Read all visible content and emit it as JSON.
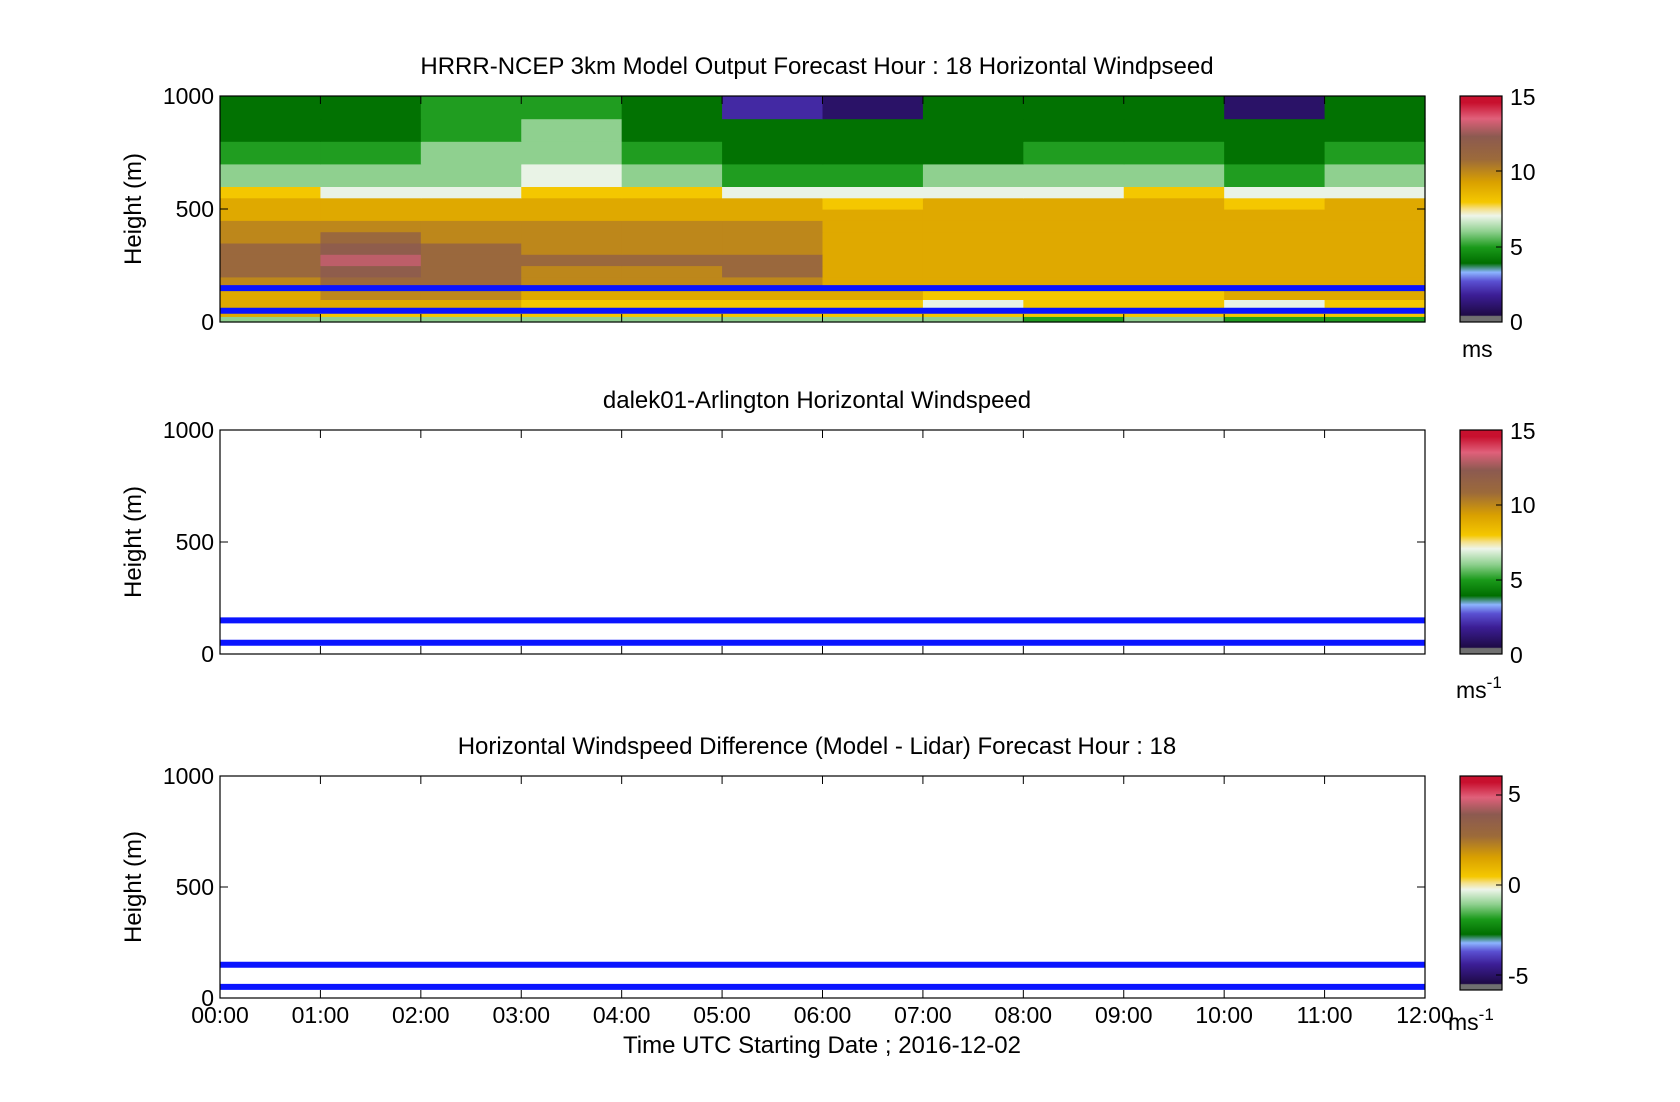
{
  "figure": {
    "xlabel": "Time UTC  Starting Date ; 2016-12-02",
    "x_ticks": [
      "00:00",
      "01:00",
      "02:00",
      "03:00",
      "04:00",
      "05:00",
      "06:00",
      "07:00",
      "08:00",
      "09:00",
      "10:00",
      "11:00",
      "12:00"
    ]
  },
  "chart_data": [
    {
      "type": "heatmap",
      "title": "HRRR-NCEP 3km Model Output   Forecast Hour : 18 Horizontal Windpseed",
      "ylabel": "Height (m)",
      "ylim": [
        0,
        1000
      ],
      "y_ticks": [
        "0",
        "500",
        "1000"
      ],
      "x_hours": [
        0,
        1,
        2,
        3,
        4,
        5,
        6,
        7,
        8,
        9,
        10,
        11
      ],
      "y_levels_m": [
        0,
        25,
        50,
        100,
        150,
        200,
        250,
        300,
        350,
        400,
        450,
        500,
        550,
        600,
        700,
        800,
        900,
        1000
      ],
      "values_ms": [
        [
          6,
          6,
          6,
          6,
          6,
          6,
          6,
          6,
          5,
          6,
          5,
          5
        ],
        [
          9,
          8,
          8,
          8,
          8,
          8,
          8,
          8,
          8,
          8,
          8,
          8
        ],
        [
          9,
          9,
          9,
          8,
          8,
          8,
          8,
          7,
          8,
          8,
          7,
          8
        ],
        [
          9,
          10,
          10,
          9,
          9,
          9,
          9,
          8,
          8,
          8,
          9,
          9
        ],
        [
          10,
          11,
          11,
          10,
          10,
          10,
          9,
          9,
          9,
          9,
          9,
          9
        ],
        [
          11,
          12,
          11,
          10,
          10,
          11,
          9,
          9,
          9,
          9,
          9,
          9
        ],
        [
          11,
          13,
          11,
          11,
          11,
          11,
          9,
          9,
          9,
          9,
          9,
          9
        ],
        [
          11,
          12,
          11,
          10,
          10,
          10,
          9,
          9,
          9,
          9,
          9,
          9
        ],
        [
          10,
          11,
          10,
          10,
          10,
          10,
          9,
          9,
          9,
          9,
          9,
          9
        ],
        [
          10,
          10,
          10,
          10,
          10,
          10,
          9,
          9,
          9,
          9,
          9,
          9
        ],
        [
          9,
          9,
          9,
          9,
          9,
          9,
          9,
          9,
          9,
          9,
          9,
          9
        ],
        [
          9,
          9,
          9,
          9,
          9,
          9,
          8,
          9,
          9,
          9,
          8,
          9
        ],
        [
          8,
          7,
          7,
          8,
          8,
          7,
          7,
          7,
          7,
          8,
          7,
          7
        ],
        [
          6,
          6,
          6,
          7,
          6,
          5,
          5,
          6,
          6,
          6,
          5,
          6
        ],
        [
          5,
          5,
          6,
          6,
          5,
          4,
          4,
          4,
          5,
          5,
          4,
          5
        ],
        [
          4,
          4,
          5,
          6,
          4,
          4,
          4,
          4,
          4,
          4,
          4,
          4
        ],
        [
          4,
          4,
          5,
          5,
          4,
          2,
          1,
          4,
          4,
          4,
          1,
          4
        ]
      ],
      "overlay_lines_m": [
        150,
        50
      ],
      "colorbar": {
        "ticks": [
          "0",
          "5",
          "10",
          "15"
        ],
        "range": [
          0,
          15
        ],
        "units": "ms"
      }
    },
    {
      "type": "heatmap",
      "title": "dalek01-Arlington  Horizontal Windspeed",
      "ylabel": "Height (m)",
      "ylim": [
        0,
        1000
      ],
      "y_ticks": [
        "0",
        "500",
        "1000"
      ],
      "values_ms": [],
      "overlay_lines_m": [
        150,
        50
      ],
      "colorbar": {
        "ticks": [
          "0",
          "5",
          "10",
          "15"
        ],
        "range": [
          0,
          15
        ],
        "units": "ms",
        "units_exp": "-1"
      }
    },
    {
      "type": "heatmap",
      "title": "Horizontal Windspeed Difference (Model - Lidar) Forecast Hour : 18",
      "ylabel": "Height (m)",
      "ylim": [
        0,
        1000
      ],
      "y_ticks": [
        "0",
        "500",
        "1000"
      ],
      "values_ms": [],
      "overlay_lines_m": [
        150,
        50
      ],
      "colorbar": {
        "ticks": [
          "-5",
          "0",
          "5"
        ],
        "range": [
          -6,
          6
        ],
        "units": "ms",
        "units_exp": "-1"
      }
    }
  ],
  "colors": {
    "overlay_line": "#0a14ff",
    "colormap_stops": [
      "#707070",
      "#1e0a46",
      "#3c1e96",
      "#8cb4ff",
      "#006e00",
      "#22a022",
      "#eef5ea",
      "#f5c800",
      "#d9a000",
      "#8c5a2e",
      "#e0607a",
      "#c8102e"
    ]
  }
}
